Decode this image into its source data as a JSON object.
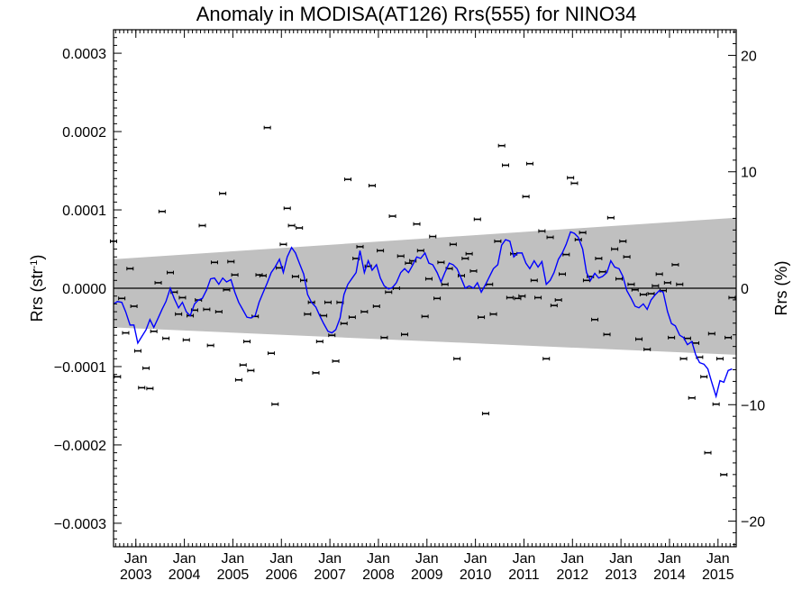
{
  "chart_data": {
    "type": "scatter",
    "title": "Anomaly in MODISA(AT126) Rrs(555) for NINO34",
    "ylabel_left": {
      "main": "Rrs (str",
      "sup": "-1",
      "end": ")"
    },
    "ylabel_right": "Rrs (%)",
    "xlim": [
      2002.54,
      2015.375
    ],
    "ylim_left": [
      -0.00033,
      0.00033
    ],
    "ylim_right": [
      -22.2,
      22.2
    ],
    "x_ticks": [
      {
        "month": "Jan",
        "year": "2003",
        "x": 2003.0
      },
      {
        "month": "Jan",
        "year": "2004",
        "x": 2004.0
      },
      {
        "month": "Jan",
        "year": "2005",
        "x": 2005.0
      },
      {
        "month": "Jan",
        "year": "2006",
        "x": 2006.0
      },
      {
        "month": "Jan",
        "year": "2007",
        "x": 2007.0
      },
      {
        "month": "Jan",
        "year": "2008",
        "x": 2008.0
      },
      {
        "month": "Jan",
        "year": "2009",
        "x": 2009.0
      },
      {
        "month": "Jan",
        "year": "2010",
        "x": 2010.0
      },
      {
        "month": "Jan",
        "year": "2011",
        "x": 2011.0
      },
      {
        "month": "Jan",
        "year": "2012",
        "x": 2012.0
      },
      {
        "month": "Jan",
        "year": "2013",
        "x": 2013.0
      },
      {
        "month": "Jan",
        "year": "2014",
        "x": 2014.0
      },
      {
        "month": "Jan",
        "year": "2015",
        "x": 2015.0
      }
    ],
    "y_ticks_left": [
      {
        "label": "0.0003",
        "v": 0.0003
      },
      {
        "label": "0.0002",
        "v": 0.0002
      },
      {
        "label": "0.0001",
        "v": 0.0001
      },
      {
        "label": "0.0000",
        "v": 0.0
      },
      {
        "label": "−0.0001",
        "v": -0.0001
      },
      {
        "label": "−0.0002",
        "v": -0.0002
      },
      {
        "label": "−0.0003",
        "v": -0.0003
      }
    ],
    "y_ticks_right": [
      {
        "label": "20",
        "v": 20
      },
      {
        "label": "10",
        "v": 10
      },
      {
        "label": "0",
        "v": 0
      },
      {
        "label": "−10",
        "v": -10
      },
      {
        "label": "−20",
        "v": -20
      }
    ],
    "band": {
      "x_start": 2002.54,
      "x_end": 2015.375,
      "upper_start": 3.7e-05,
      "upper_end": 9e-05,
      "lower_start": -5e-05,
      "lower_end": -8.5e-05
    },
    "zero_line": 0.0,
    "colors": {
      "band": "#c0c0c0",
      "line": "#0000ff",
      "points": "#000000",
      "axes": "#000000"
    },
    "points": [
      [
        2002.54,
        6e-05
      ],
      [
        2002.62,
        -0.000113
      ],
      [
        2002.71,
        -1.3e-05
      ],
      [
        2002.79,
        -5.7e-05
      ],
      [
        2002.88,
        2.5e-05
      ],
      [
        2002.96,
        -2.3e-05
      ],
      [
        2003.04,
        -8e-05
      ],
      [
        2003.12,
        -0.000127
      ],
      [
        2003.21,
        -0.000102
      ],
      [
        2003.29,
        -0.000128
      ],
      [
        2003.37,
        -5.5e-05
      ],
      [
        2003.46,
        7e-06
      ],
      [
        2003.54,
        9.8e-05
      ],
      [
        2003.62,
        -6.4e-05
      ],
      [
        2003.71,
        2e-05
      ],
      [
        2003.79,
        -5e-06
      ],
      [
        2003.88,
        -3.3e-05
      ],
      [
        2003.96,
        -1.2e-05
      ],
      [
        2004.04,
        -6.6e-05
      ],
      [
        2004.12,
        -3.5e-05
      ],
      [
        2004.21,
        -2.8e-05
      ],
      [
        2004.29,
        -1.5e-05
      ],
      [
        2004.37,
        8e-05
      ],
      [
        2004.46,
        -2.7e-05
      ],
      [
        2004.54,
        -7.3e-05
      ],
      [
        2004.62,
        3.3e-05
      ],
      [
        2004.71,
        -3e-05
      ],
      [
        2004.79,
        0.000121
      ],
      [
        2004.87,
        -2e-06
      ],
      [
        2004.96,
        3.4e-05
      ],
      [
        2005.04,
        1.7e-05
      ],
      [
        2005.12,
        -0.000117
      ],
      [
        2005.21,
        -9.8e-05
      ],
      [
        2005.29,
        -6.8e-05
      ],
      [
        2005.37,
        -0.000105
      ],
      [
        2005.46,
        -3.6e-05
      ],
      [
        2005.54,
        1.7e-05
      ],
      [
        2005.62,
        1.6e-05
      ],
      [
        2005.71,
        0.000205
      ],
      [
        2005.79,
        -8.3e-05
      ],
      [
        2005.87,
        -0.000148
      ],
      [
        2005.96,
        2.6e-05
      ],
      [
        2006.04,
        5.6e-05
      ],
      [
        2006.12,
        0.000102
      ],
      [
        2006.21,
        8e-05
      ],
      [
        2006.29,
        1.5e-05
      ],
      [
        2006.37,
        7.7e-05
      ],
      [
        2006.46,
        1e-05
      ],
      [
        2006.54,
        -3.3e-05
      ],
      [
        2006.62,
        -1.8e-05
      ],
      [
        2006.71,
        -0.000108
      ],
      [
        2006.79,
        -6.8e-05
      ],
      [
        2006.87,
        -3.5e-05
      ],
      [
        2006.96,
        -1.8e-05
      ],
      [
        2007.04,
        -6e-05
      ],
      [
        2007.12,
        -9.3e-05
      ],
      [
        2007.21,
        -1.8e-05
      ],
      [
        2007.29,
        -4.5e-05
      ],
      [
        2007.37,
        0.000139
      ],
      [
        2007.46,
        -3.7e-05
      ],
      [
        2007.54,
        3.8e-05
      ],
      [
        2007.62,
        5.3e-05
      ],
      [
        2007.71,
        -3e-05
      ],
      [
        2007.79,
        2.8e-05
      ],
      [
        2007.87,
        0.000131
      ],
      [
        2007.96,
        -2.3e-05
      ],
      [
        2008.04,
        4.8e-05
      ],
      [
        2008.12,
        -6.3e-05
      ],
      [
        2008.21,
        -5e-06
      ],
      [
        2008.29,
        9.2e-05
      ],
      [
        2008.37,
        0.0
      ],
      [
        2008.46,
        4.1e-05
      ],
      [
        2008.54,
        -5.9e-05
      ],
      [
        2008.62,
        3.2e-05
      ],
      [
        2008.71,
        3.5e-05
      ],
      [
        2008.79,
        8.2e-05
      ],
      [
        2008.87,
        4.8e-05
      ],
      [
        2008.96,
        -3.6e-05
      ],
      [
        2009.04,
        1.2e-05
      ],
      [
        2009.12,
        6.6e-05
      ],
      [
        2009.21,
        -1.3e-05
      ],
      [
        2009.29,
        3.3e-05
      ],
      [
        2009.37,
        5e-06
      ],
      [
        2009.46,
        2.5e-05
      ],
      [
        2009.54,
        5.6e-05
      ],
      [
        2009.62,
        -9e-05
      ],
      [
        2009.71,
        1.6e-05
      ],
      [
        2009.79,
        3.8e-05
      ],
      [
        2009.87,
        4.4e-05
      ],
      [
        2009.96,
        2.2e-05
      ],
      [
        2010.04,
        8.8e-05
      ],
      [
        2010.12,
        -3.7e-05
      ],
      [
        2010.21,
        -0.00016
      ],
      [
        2010.29,
        5e-06
      ],
      [
        2010.37,
        -3.3e-05
      ],
      [
        2010.46,
        6e-05
      ],
      [
        2010.54,
        0.000182
      ],
      [
        2010.62,
        0.000157
      ],
      [
        2010.71,
        -1.2e-05
      ],
      [
        2010.79,
        4.4e-05
      ],
      [
        2010.87,
        -1.3e-05
      ],
      [
        2010.96,
        -1e-05
      ],
      [
        2011.04,
        0.000117
      ],
      [
        2011.12,
        0.000159
      ],
      [
        2011.21,
        1e-05
      ],
      [
        2011.29,
        -1.2e-05
      ],
      [
        2011.37,
        7.3e-05
      ],
      [
        2011.46,
        -9e-05
      ],
      [
        2011.54,
        6.5e-05
      ],
      [
        2011.62,
        -2.2e-05
      ],
      [
        2011.71,
        -1.5e-05
      ],
      [
        2011.79,
        1.8e-05
      ],
      [
        2011.87,
        4.3e-05
      ],
      [
        2011.96,
        0.000141
      ],
      [
        2012.04,
        0.000134
      ],
      [
        2012.12,
        6.2e-05
      ],
      [
        2012.21,
        7.1e-05
      ],
      [
        2012.29,
        1e-05
      ],
      [
        2012.37,
        1.5e-05
      ],
      [
        2012.46,
        -4e-05
      ],
      [
        2012.54,
        3.8e-05
      ],
      [
        2012.62,
        2.1e-05
      ],
      [
        2012.71,
        -5.9e-05
      ],
      [
        2012.79,
        9e-05
      ],
      [
        2012.87,
        5e-05
      ],
      [
        2012.96,
        1.2e-05
      ],
      [
        2013.04,
        6e-05
      ],
      [
        2013.12,
        4e-05
      ],
      [
        2013.21,
        5e-06
      ],
      [
        2013.29,
        -2e-06
      ],
      [
        2013.37,
        -6.5e-05
      ],
      [
        2013.46,
        -8e-06
      ],
      [
        2013.54,
        -7.8e-05
      ],
      [
        2013.62,
        -7e-06
      ],
      [
        2013.71,
        3e-06
      ],
      [
        2013.79,
        1.8e-05
      ],
      [
        2013.87,
        -3e-06
      ],
      [
        2013.96,
        7e-06
      ],
      [
        2014.04,
        -6.3e-05
      ],
      [
        2014.12,
        3e-05
      ],
      [
        2014.21,
        5e-06
      ],
      [
        2014.29,
        -9e-05
      ],
      [
        2014.37,
        -6.4e-05
      ],
      [
        2014.46,
        -0.00014
      ],
      [
        2014.54,
        -7e-05
      ],
      [
        2014.62,
        -8.8e-05
      ],
      [
        2014.71,
        -0.000113
      ],
      [
        2014.79,
        -0.00021
      ],
      [
        2014.87,
        -5.8e-05
      ],
      [
        2014.96,
        -0.000148
      ],
      [
        2015.04,
        -9e-05
      ],
      [
        2015.12,
        -0.000238
      ],
      [
        2015.21,
        -6.3e-05
      ],
      [
        2015.29,
        -1.2e-05
      ]
    ],
    "line": [
      [
        2002.54,
        -2e-05
      ],
      [
        2002.62,
        -1.7e-05
      ],
      [
        2002.71,
        -1.8e-05
      ],
      [
        2002.79,
        -3e-05
      ],
      [
        2002.88,
        -4.7e-05
      ],
      [
        2002.96,
        -4.7e-05
      ],
      [
        2003.04,
        -7e-05
      ],
      [
        2003.12,
        -6.2e-05
      ],
      [
        2003.21,
        -5.3e-05
      ],
      [
        2003.29,
        -4e-05
      ],
      [
        2003.37,
        -5e-05
      ],
      [
        2003.46,
        -3.8e-05
      ],
      [
        2003.54,
        -2.7e-05
      ],
      [
        2003.62,
        -1.7e-05
      ],
      [
        2003.71,
        0.0
      ],
      [
        2003.79,
        -1.3e-05
      ],
      [
        2003.88,
        -2.5e-05
      ],
      [
        2003.96,
        -1.8e-05
      ],
      [
        2004.04,
        -3e-05
      ],
      [
        2004.12,
        -3.5e-05
      ],
      [
        2004.21,
        -2e-05
      ],
      [
        2004.29,
        -1.5e-05
      ],
      [
        2004.37,
        -1.3e-05
      ],
      [
        2004.46,
        -2e-06
      ],
      [
        2004.54,
        1.2e-05
      ],
      [
        2004.62,
        1.3e-05
      ],
      [
        2004.71,
        5e-06
      ],
      [
        2004.79,
        1.3e-05
      ],
      [
        2004.87,
        8e-06
      ],
      [
        2004.96,
        1.1e-05
      ],
      [
        2005.04,
        -5e-06
      ],
      [
        2005.12,
        -1.8e-05
      ],
      [
        2005.21,
        -2.8e-05
      ],
      [
        2005.29,
        -3.7e-05
      ],
      [
        2005.37,
        -3.8e-05
      ],
      [
        2005.46,
        -3.5e-05
      ],
      [
        2005.54,
        -1.8e-05
      ],
      [
        2005.62,
        -6e-06
      ],
      [
        2005.71,
        7e-06
      ],
      [
        2005.79,
        2e-05
      ],
      [
        2005.87,
        2.7e-05
      ],
      [
        2005.96,
        3.7e-05
      ],
      [
        2006.04,
        2e-05
      ],
      [
        2006.12,
        4e-05
      ],
      [
        2006.21,
        5.2e-05
      ],
      [
        2006.29,
        4.5e-05
      ],
      [
        2006.37,
        3.2e-05
      ],
      [
        2006.46,
        1.8e-05
      ],
      [
        2006.54,
        -8e-06
      ],
      [
        2006.62,
        -1.8e-05
      ],
      [
        2006.71,
        -2.4e-05
      ],
      [
        2006.79,
        -3.5e-05
      ],
      [
        2006.87,
        -4.5e-05
      ],
      [
        2006.96,
        -5.5e-05
      ],
      [
        2007.04,
        -5.7e-05
      ],
      [
        2007.12,
        -5.3e-05
      ],
      [
        2007.21,
        -3.8e-05
      ],
      [
        2007.29,
        -8e-06
      ],
      [
        2007.37,
        5e-06
      ],
      [
        2007.46,
        1.3e-05
      ],
      [
        2007.54,
        2e-05
      ],
      [
        2007.62,
        4.8e-05
      ],
      [
        2007.71,
        2e-05
      ],
      [
        2007.79,
        3.5e-05
      ],
      [
        2007.87,
        2.3e-05
      ],
      [
        2007.96,
        3e-05
      ],
      [
        2008.04,
        1.3e-05
      ],
      [
        2008.12,
        3e-06
      ],
      [
        2008.21,
        -1e-06
      ],
      [
        2008.29,
        1e-06
      ],
      [
        2008.37,
        7e-06
      ],
      [
        2008.46,
        2e-05
      ],
      [
        2008.54,
        2.5e-05
      ],
      [
        2008.62,
        2e-05
      ],
      [
        2008.71,
        3e-05
      ],
      [
        2008.79,
        4e-05
      ],
      [
        2008.87,
        3.8e-05
      ],
      [
        2008.96,
        4.5e-05
      ],
      [
        2009.04,
        3.2e-05
      ],
      [
        2009.12,
        3e-05
      ],
      [
        2009.21,
        2e-05
      ],
      [
        2009.29,
        8e-06
      ],
      [
        2009.37,
        2e-05
      ],
      [
        2009.46,
        3.2e-05
      ],
      [
        2009.54,
        3e-05
      ],
      [
        2009.62,
        2.5e-05
      ],
      [
        2009.71,
        1.2e-05
      ],
      [
        2009.79,
        0.0
      ],
      [
        2009.87,
        3e-06
      ],
      [
        2009.96,
        0.0
      ],
      [
        2010.04,
        7e-06
      ],
      [
        2010.12,
        -5e-06
      ],
      [
        2010.21,
        5e-06
      ],
      [
        2010.29,
        1.5e-05
      ],
      [
        2010.37,
        2.5e-05
      ],
      [
        2010.46,
        3e-05
      ],
      [
        2010.54,
        5.5e-05
      ],
      [
        2010.62,
        6.2e-05
      ],
      [
        2010.71,
        6e-05
      ],
      [
        2010.79,
        4e-05
      ],
      [
        2010.87,
        4.5e-05
      ],
      [
        2010.96,
        4.5e-05
      ],
      [
        2011.04,
        3.2e-05
      ],
      [
        2011.12,
        2.5e-05
      ],
      [
        2011.21,
        3.5e-05
      ],
      [
        2011.29,
        2.7e-05
      ],
      [
        2011.37,
        3.4e-05
      ],
      [
        2011.46,
        5e-06
      ],
      [
        2011.54,
        1e-05
      ],
      [
        2011.62,
        2e-05
      ],
      [
        2011.71,
        3.7e-05
      ],
      [
        2011.79,
        4.5e-05
      ],
      [
        2011.87,
        5.6e-05
      ],
      [
        2011.96,
        7.2e-05
      ],
      [
        2012.04,
        7e-05
      ],
      [
        2012.12,
        6.5e-05
      ],
      [
        2012.21,
        5e-05
      ],
      [
        2012.29,
        2e-05
      ],
      [
        2012.37,
        1e-05
      ],
      [
        2012.46,
        1.9e-05
      ],
      [
        2012.54,
        1.3e-05
      ],
      [
        2012.62,
        1.5e-05
      ],
      [
        2012.71,
        2e-05
      ],
      [
        2012.79,
        3.5e-05
      ],
      [
        2012.87,
        2.7e-05
      ],
      [
        2012.96,
        2.5e-05
      ],
      [
        2013.04,
        1.5e-05
      ],
      [
        2013.12,
        -3e-06
      ],
      [
        2013.21,
        -1.3e-05
      ],
      [
        2013.29,
        -2.3e-05
      ],
      [
        2013.37,
        -2.5e-05
      ],
      [
        2013.46,
        -2e-05
      ],
      [
        2013.54,
        -2.7e-05
      ],
      [
        2013.62,
        -1.5e-05
      ],
      [
        2013.71,
        -8e-06
      ],
      [
        2013.79,
        -3e-06
      ],
      [
        2013.87,
        -5e-06
      ],
      [
        2013.96,
        -3e-05
      ],
      [
        2014.04,
        -4.5e-05
      ],
      [
        2014.12,
        -4.8e-05
      ],
      [
        2014.21,
        -6e-05
      ],
      [
        2014.29,
        -6.3e-05
      ],
      [
        2014.37,
        -7.2e-05
      ],
      [
        2014.46,
        -6.8e-05
      ],
      [
        2014.54,
        -8.5e-05
      ],
      [
        2014.62,
        -9.5e-05
      ],
      [
        2014.71,
        -9.7e-05
      ],
      [
        2014.79,
        -0.000103
      ],
      [
        2014.87,
        -0.00012
      ],
      [
        2014.96,
        -0.000138
      ],
      [
        2015.04,
        -0.000118
      ],
      [
        2015.12,
        -0.00012
      ],
      [
        2015.21,
        -0.000105
      ],
      [
        2015.29,
        -0.000103
      ]
    ]
  }
}
